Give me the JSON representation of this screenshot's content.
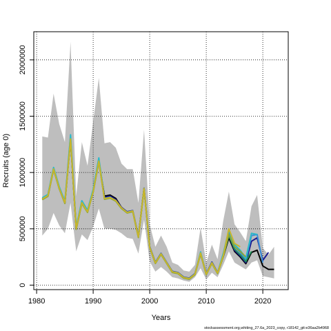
{
  "chart_data": {
    "type": "line",
    "xlabel": "Years",
    "ylabel": "Recruits (age 0)",
    "xlim": [
      1979.5,
      2024.5
    ],
    "ylim": [
      -40000,
      2250000
    ],
    "x_ticks": [
      1980,
      1990,
      2000,
      2010,
      2020
    ],
    "y_ticks": [
      0,
      500000,
      1000000,
      1500000,
      2000000
    ],
    "grid": true,
    "footnote": "stockassessment.org,whiting_27.6a_2023_copy, r18142_git:e36aa2b4968",
    "colors": {
      "band": "#bebebe",
      "series": [
        "#000000",
        "#1a1a8f",
        "#3b8fd6",
        "#2ab9c9",
        "#1f8f5a",
        "#8aa63a",
        "#c9b52a"
      ]
    },
    "confidence_band": {
      "x": [
        1981,
        1982,
        1983,
        1984,
        1985,
        1986,
        1987,
        1988,
        1989,
        1990,
        1991,
        1992,
        1993,
        1994,
        1995,
        1996,
        1997,
        1998,
        1999,
        2000,
        2001,
        2002,
        2003,
        2004,
        2005,
        2006,
        2007,
        2008,
        2009,
        2010,
        2011,
        2012,
        2013,
        2014,
        2015,
        2016,
        2017,
        2018,
        2019,
        2020,
        2021,
        2022
      ],
      "upper": [
        1320000,
        1310000,
        1700000,
        1430000,
        1270000,
        2160000,
        790000,
        1270000,
        1060000,
        1450000,
        1840000,
        1260000,
        1270000,
        1220000,
        1080000,
        1030000,
        1030000,
        730000,
        1380000,
        540000,
        340000,
        440000,
        340000,
        200000,
        180000,
        130000,
        120000,
        180000,
        510000,
        200000,
        360000,
        230000,
        570000,
        830000,
        540000,
        470000,
        390000,
        700000,
        800000,
        330000,
        270000,
        340000
      ],
      "lower": [
        440000,
        500000,
        640000,
        530000,
        460000,
        730000,
        300000,
        450000,
        400000,
        520000,
        680000,
        500000,
        500000,
        490000,
        460000,
        420000,
        410000,
        280000,
        580000,
        210000,
        120000,
        160000,
        120000,
        70000,
        60000,
        40000,
        30000,
        70000,
        150000,
        50000,
        110000,
        70000,
        180000,
        300000,
        200000,
        170000,
        140000,
        200000,
        220000,
        80000,
        70000,
        60000
      ]
    },
    "series": [
      {
        "x": [
          1981,
          1982,
          1983,
          1984,
          1985,
          1986,
          1987,
          1988,
          1989,
          1990,
          1991,
          1992,
          1993,
          1994,
          1995,
          1996,
          1997,
          1998,
          1999,
          2000,
          2001,
          2002,
          2003,
          2004,
          2005,
          2006,
          2007,
          2008,
          2009,
          2010,
          2011,
          2012,
          2013,
          2014,
          2015,
          2016,
          2017,
          2018,
          2019,
          2020,
          2021,
          2022
        ],
        "values": [
          760000,
          790000,
          1030000,
          860000,
          730000,
          1300000,
          500000,
          730000,
          650000,
          830000,
          1100000,
          790000,
          800000,
          770000,
          690000,
          650000,
          660000,
          430000,
          860000,
          340000,
          200000,
          280000,
          200000,
          120000,
          110000,
          70000,
          60000,
          100000,
          280000,
          100000,
          200000,
          110000,
          250000,
          420000,
          300000,
          250000,
          190000,
          290000,
          310000,
          170000,
          140000,
          140000
        ]
      },
      {
        "x": [
          1981,
          1982,
          1983,
          1984,
          1985,
          1986,
          1987,
          1988,
          1989,
          1990,
          1991,
          1992,
          1993,
          1994,
          1995,
          1996,
          1997,
          1998,
          1999,
          2000,
          2001,
          2002,
          2003,
          2004,
          2005,
          2006,
          2007,
          2008,
          2009,
          2010,
          2011,
          2012,
          2013,
          2014,
          2015,
          2016,
          2017,
          2018,
          2019,
          2020,
          2021
        ],
        "values": [
          765000,
          795000,
          1035000,
          865000,
          735000,
          1305000,
          505000,
          735000,
          655000,
          835000,
          1105000,
          780000,
          790000,
          760000,
          690000,
          652000,
          662000,
          432000,
          862000,
          342000,
          202000,
          282000,
          202000,
          122000,
          112000,
          72000,
          62000,
          102000,
          285000,
          102000,
          205000,
          112000,
          260000,
          440000,
          310000,
          260000,
          200000,
          390000,
          420000,
          220000,
          290000
        ]
      },
      {
        "x": [
          1981,
          1982,
          1983,
          1984,
          1985,
          1986,
          1987,
          1988,
          1989,
          1990,
          1991,
          1992,
          1993,
          1994,
          1995,
          1996,
          1997,
          1998,
          1999,
          2000,
          2001,
          2002,
          2003,
          2004,
          2005,
          2006,
          2007,
          2008,
          2009,
          2010,
          2011,
          2012,
          2013,
          2014,
          2015,
          2016,
          2017,
          2018,
          2019,
          2020
        ],
        "values": [
          770000,
          800000,
          1040000,
          870000,
          740000,
          1315000,
          510000,
          740000,
          660000,
          840000,
          1110000,
          770000,
          780000,
          750000,
          685000,
          648000,
          660000,
          430000,
          860000,
          340000,
          200000,
          280000,
          200000,
          120000,
          110000,
          70000,
          60000,
          100000,
          290000,
          100000,
          200000,
          110000,
          270000,
          470000,
          340000,
          290000,
          220000,
          440000,
          450000,
          200000
        ]
      },
      {
        "x": [
          1981,
          1982,
          1983,
          1984,
          1985,
          1986,
          1987,
          1988,
          1989,
          1990,
          1991,
          1992,
          1993,
          1994,
          1995,
          1996,
          1997,
          1998,
          1999,
          2000,
          2001,
          2002,
          2003,
          2004,
          2005,
          2006,
          2007,
          2008,
          2009,
          2010,
          2011,
          2012,
          2013,
          2014,
          2015,
          2016,
          2017,
          2018,
          2019
        ],
        "values": [
          775000,
          805000,
          1045000,
          875000,
          745000,
          1335000,
          515000,
          750000,
          665000,
          850000,
          1130000,
          770000,
          780000,
          750000,
          685000,
          645000,
          658000,
          428000,
          858000,
          338000,
          198000,
          278000,
          198000,
          118000,
          108000,
          68000,
          58000,
          98000,
          295000,
          98000,
          198000,
          108000,
          280000,
          490000,
          360000,
          310000,
          240000,
          460000,
          450000
        ]
      },
      {
        "x": [
          1981,
          1982,
          1983,
          1984,
          1985,
          1986,
          1987,
          1988,
          1989,
          1990,
          1991,
          1992,
          1993,
          1994,
          1995,
          1996,
          1997,
          1998,
          1999,
          2000,
          2001,
          2002,
          2003,
          2004,
          2005,
          2006,
          2007,
          2008,
          2009,
          2010,
          2011,
          2012,
          2013,
          2014,
          2015,
          2016,
          2017,
          2018
        ],
        "values": [
          762000,
          792000,
          1028000,
          858000,
          728000,
          1295000,
          498000,
          728000,
          648000,
          828000,
          1098000,
          765000,
          775000,
          748000,
          682000,
          642000,
          655000,
          425000,
          855000,
          335000,
          195000,
          275000,
          195000,
          115000,
          105000,
          65000,
          55000,
          95000,
          280000,
          95000,
          195000,
          105000,
          255000,
          440000,
          320000,
          270000,
          210000,
          300000
        ]
      },
      {
        "x": [
          1981,
          1982,
          1983,
          1984,
          1985,
          1986,
          1987,
          1988,
          1989,
          1990,
          1991,
          1992,
          1993,
          1994,
          1995,
          1996,
          1997,
          1998,
          1999,
          2000,
          2001,
          2002,
          2003,
          2004,
          2005,
          2006,
          2007,
          2008,
          2009,
          2010,
          2011,
          2012,
          2013,
          2014,
          2015,
          2016,
          2017
        ],
        "values": [
          758000,
          788000,
          1025000,
          855000,
          725000,
          1290000,
          495000,
          725000,
          645000,
          825000,
          1095000,
          762000,
          772000,
          745000,
          680000,
          640000,
          652000,
          422000,
          852000,
          332000,
          192000,
          272000,
          192000,
          112000,
          102000,
          62000,
          52000,
          92000,
          275000,
          92000,
          192000,
          102000,
          250000,
          450000,
          340000,
          300000,
          250000
        ]
      },
      {
        "x": [
          1981,
          1982,
          1983,
          1984,
          1985,
          1986,
          1987,
          1988,
          1989,
          1990,
          1991,
          1992,
          1993,
          1994,
          1995,
          1996,
          1997,
          1998,
          1999,
          2000,
          2001,
          2002,
          2003,
          2004,
          2005,
          2006,
          2007,
          2008,
          2009,
          2010,
          2011,
          2012,
          2013,
          2014,
          2015,
          2016
        ],
        "values": [
          765000,
          795000,
          1032000,
          862000,
          732000,
          1298000,
          502000,
          732000,
          652000,
          832000,
          1102000,
          768000,
          778000,
          752000,
          686000,
          646000,
          658000,
          428000,
          858000,
          338000,
          198000,
          278000,
          198000,
          118000,
          108000,
          68000,
          58000,
          98000,
          285000,
          98000,
          198000,
          108000,
          260000,
          500000,
          370000,
          340000
        ]
      }
    ]
  }
}
